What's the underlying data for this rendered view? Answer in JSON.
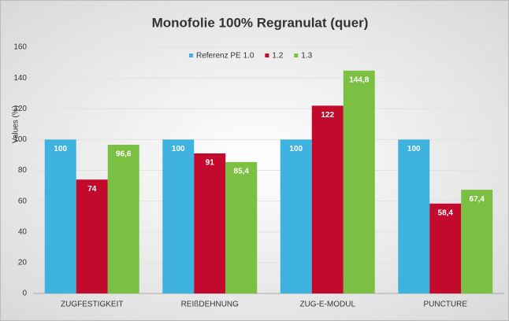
{
  "chart_data": {
    "type": "bar",
    "title": "Monofolie 100% Regranulat (quer)",
    "y_label": "Values (%)",
    "categories": [
      "ZUGFESTIGKEIT",
      "REIßDEHNUNG",
      "ZUG-E-MODUL",
      "PUNCTURE"
    ],
    "series": [
      {
        "name": "Referenz PE 1.0",
        "color": "#3fb3e0",
        "values": [
          100,
          100,
          100,
          100
        ],
        "value_labels": [
          "100",
          "100",
          "100",
          "100"
        ]
      },
      {
        "name": "1.2",
        "color": "#c20a2c",
        "values": [
          74,
          91,
          122,
          58.4
        ],
        "value_labels": [
          "74",
          "91",
          "122",
          "58,4"
        ]
      },
      {
        "name": "1.3",
        "color": "#7cc043",
        "values": [
          96.6,
          85.4,
          144.8,
          67.4
        ],
        "value_labels": [
          "96,6",
          "85,4",
          "144,8",
          "67,4"
        ]
      }
    ],
    "ylim": [
      0,
      160
    ],
    "yticks": [
      0,
      20,
      40,
      60,
      80,
      100,
      120,
      140,
      160
    ],
    "grid": true,
    "legend": "top"
  }
}
